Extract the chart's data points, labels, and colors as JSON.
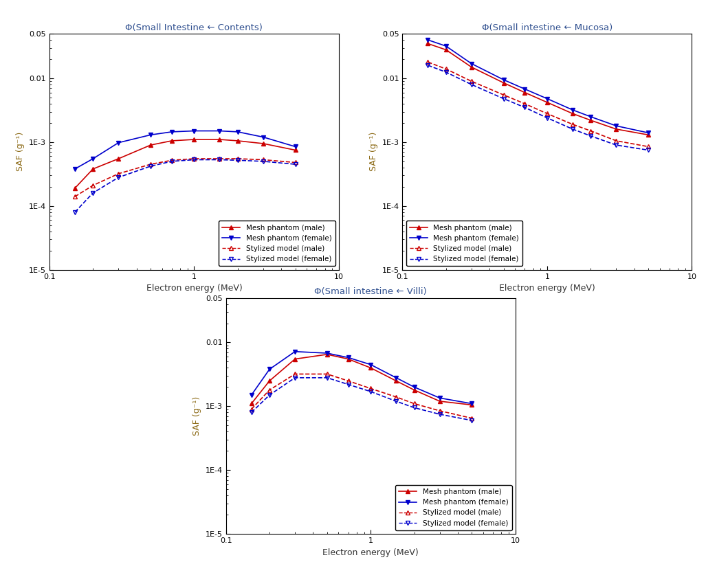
{
  "energies": [
    0.15,
    0.2,
    0.3,
    0.5,
    0.7,
    1.0,
    1.5,
    2.0,
    3.0,
    5.0
  ],
  "plot1_title": "Φ(Small Intestine ← Contents)",
  "plot1_mesh_male": [
    0.00019,
    0.00038,
    0.00055,
    0.0009,
    0.00105,
    0.0011,
    0.0011,
    0.00105,
    0.00095,
    0.00075
  ],
  "plot1_mesh_female": [
    0.00038,
    0.00055,
    0.00098,
    0.0013,
    0.00145,
    0.0015,
    0.0015,
    0.00145,
    0.0012,
    0.00085
  ],
  "plot1_styl_male": [
    0.00014,
    0.00021,
    0.00032,
    0.00045,
    0.00052,
    0.00055,
    0.00055,
    0.00055,
    0.00053,
    0.00048
  ],
  "plot1_styl_female": [
    8e-05,
    0.00016,
    0.00028,
    0.00042,
    0.0005,
    0.00053,
    0.00053,
    0.00052,
    0.0005,
    0.00045
  ],
  "plot2_title": "Φ(Small intestine ← Mucosa)",
  "plot2_mesh_male": [
    0.035,
    0.028,
    0.015,
    0.0085,
    0.006,
    0.0042,
    0.0028,
    0.0022,
    0.0016,
    0.0013
  ],
  "plot2_mesh_female": [
    0.04,
    0.032,
    0.017,
    0.0095,
    0.0068,
    0.0048,
    0.0032,
    0.0025,
    0.0018,
    0.0014
  ],
  "plot2_styl_male": [
    0.018,
    0.014,
    0.009,
    0.0055,
    0.004,
    0.0028,
    0.0019,
    0.0015,
    0.00105,
    0.00085
  ],
  "plot2_styl_female": [
    0.016,
    0.0125,
    0.008,
    0.0048,
    0.0035,
    0.0024,
    0.0016,
    0.00125,
    0.0009,
    0.00075
  ],
  "plot3_title": "Φ(Small intestine ← Villi)",
  "plot3_mesh_male": [
    0.0011,
    0.0025,
    0.0055,
    0.0065,
    0.0055,
    0.004,
    0.0025,
    0.0018,
    0.0012,
    0.00105
  ],
  "plot3_mesh_female": [
    0.0015,
    0.0038,
    0.0072,
    0.0068,
    0.0058,
    0.0045,
    0.0028,
    0.002,
    0.00135,
    0.0011
  ],
  "plot3_styl_male": [
    0.0009,
    0.0018,
    0.0032,
    0.0032,
    0.0025,
    0.0019,
    0.0014,
    0.0011,
    0.00085,
    0.00065
  ],
  "plot3_styl_female": [
    0.0008,
    0.0015,
    0.0028,
    0.0028,
    0.0022,
    0.0017,
    0.0012,
    0.00095,
    0.00075,
    0.0006
  ],
  "color_red": "#CC0000",
  "color_blue": "#0000CC",
  "xlabel": "Electron energy (MeV)",
  "ylabel": "SAF (g⁻¹)",
  "ylabel_color": "#8B6914",
  "title_color": "#2F4F8F",
  "legend_labels": [
    "Mesh phantom (male)",
    "Mesh phantom (female)",
    "Stylized model (male)",
    "Stylized model (female)"
  ],
  "ylim_lo": 1e-05,
  "ylim_hi": 0.05,
  "xlim_lo": 0.1,
  "xlim_hi": 10,
  "ytick_vals": [
    1e-05,
    0.0001,
    0.001,
    0.01,
    0.05
  ],
  "ytick_labels": [
    "1E-5",
    "1E-4",
    "1E-3",
    "0.01",
    "0.05"
  ],
  "xtick_vals": [
    0.1,
    1,
    10
  ],
  "xtick_labels": [
    "0.1",
    "1",
    "10"
  ]
}
